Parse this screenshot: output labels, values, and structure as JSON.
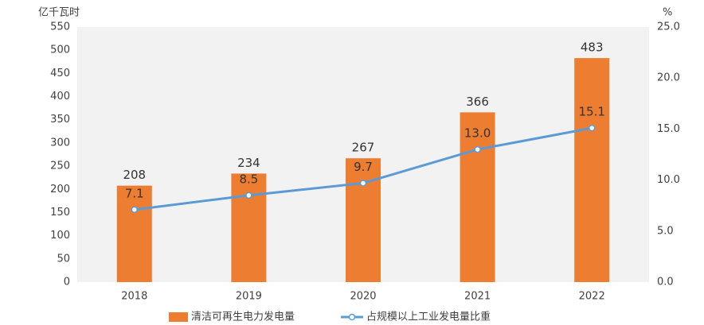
{
  "chart_data": {
    "type": "bar-line",
    "y_label": "亿千瓦时",
    "y2_label": "%",
    "categories": [
      "2018",
      "2019",
      "2020",
      "2021",
      "2022"
    ],
    "series": [
      {
        "name": "清洁可再生电力发电量",
        "type": "bar",
        "color": "#ed7d31",
        "values": [
          208,
          234,
          267,
          366,
          483
        ]
      },
      {
        "name": "占规模以上工业发电量比重",
        "type": "line",
        "axis": "y2",
        "color": "#5b9bd5",
        "values": [
          7.1,
          8.5,
          9.7,
          13.0,
          15.1
        ],
        "value_labels": [
          "7.1",
          "8.5",
          "9.7",
          "13.0",
          "15.1"
        ]
      }
    ],
    "ylim": [
      0,
      550
    ],
    "yticks": [
      0,
      50,
      100,
      150,
      200,
      250,
      300,
      350,
      400,
      450,
      500,
      550
    ],
    "y2lim": [
      0,
      25
    ],
    "y2ticks": [
      {
        "value": 0,
        "label": "0.0"
      },
      {
        "value": 5,
        "label": "5.0"
      },
      {
        "value": 10,
        "label": "10.0"
      },
      {
        "value": 15,
        "label": "15.0"
      },
      {
        "value": 20,
        "label": "20.0"
      },
      {
        "value": 25,
        "label": "25.0"
      }
    ],
    "legend": "bottom"
  }
}
